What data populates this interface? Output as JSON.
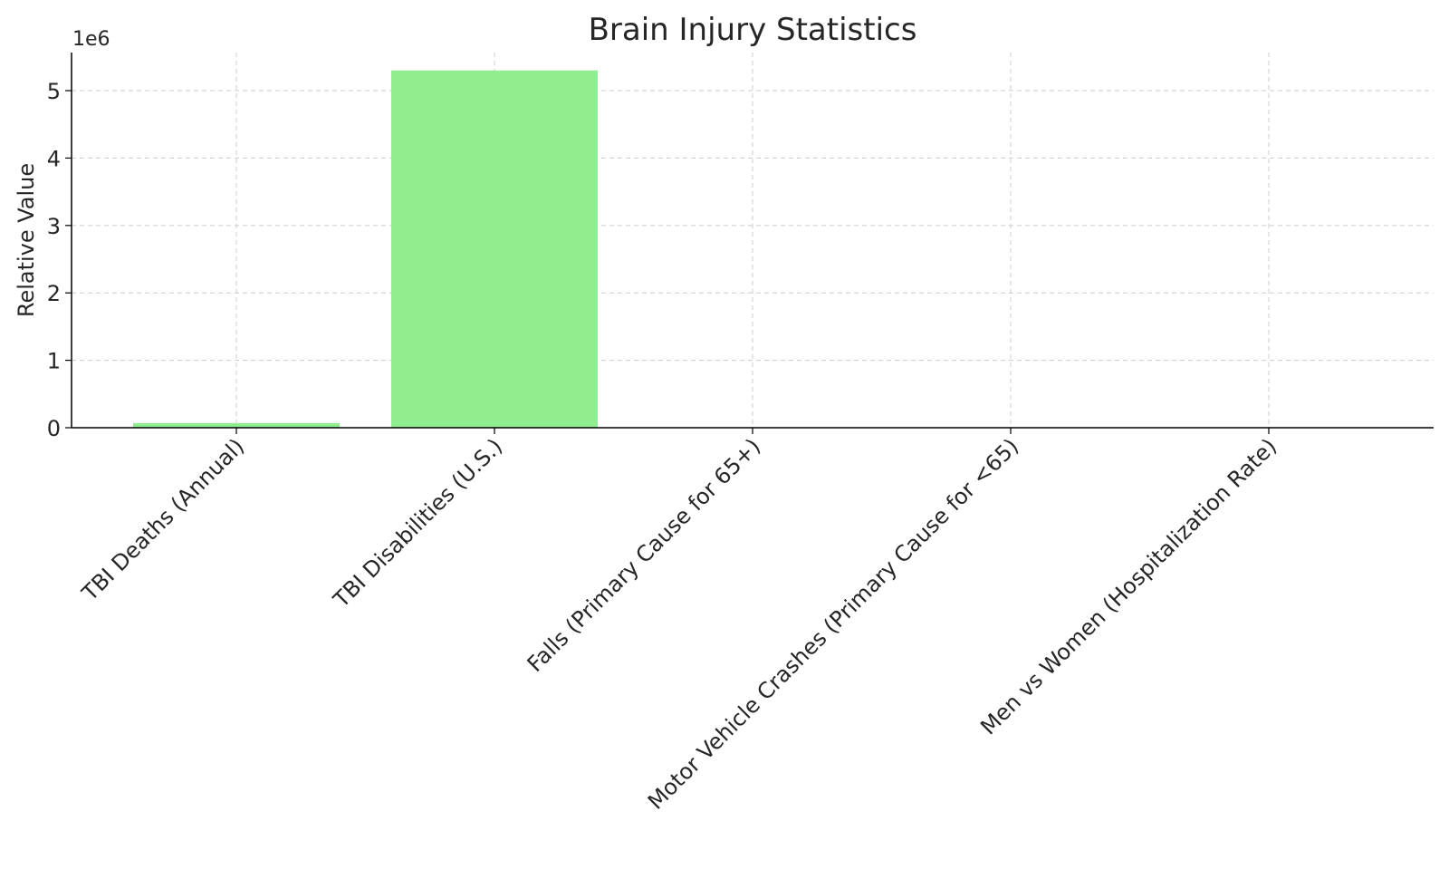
{
  "chart_data": {
    "type": "bar",
    "title": "Brain Injury Statistics",
    "xlabel": "",
    "ylabel": "Relative Value",
    "y_offset_label": "1e6",
    "categories": [
      "TBI Deaths (Annual)",
      "TBI Disabilities (U.S.)",
      "Falls (Primary Cause for 65+)",
      "Motor Vehicle Crashes (Primary Cause for <65)",
      "Men vs Women (Hospitalization Rate)"
    ],
    "values": [
      69000,
      5300000,
      0,
      0,
      0
    ],
    "ylim": [
      0,
      5565000
    ],
    "yticks": [
      0,
      1,
      2,
      3,
      4,
      5
    ],
    "ytick_scale": 1000000,
    "grid": true,
    "bar_color": "#90ee90"
  }
}
